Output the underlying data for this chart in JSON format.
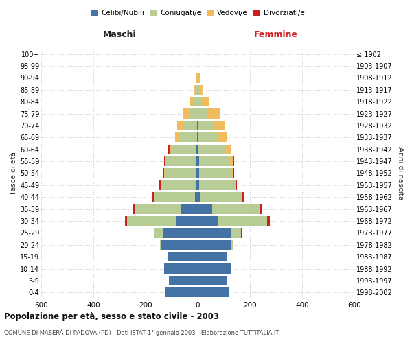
{
  "age_groups": [
    "0-4",
    "5-9",
    "10-14",
    "15-19",
    "20-24",
    "25-29",
    "30-34",
    "35-39",
    "40-44",
    "45-49",
    "50-54",
    "55-59",
    "60-64",
    "65-69",
    "70-74",
    "75-79",
    "80-84",
    "85-89",
    "90-94",
    "95-99",
    "100+"
  ],
  "birth_years": [
    "1998-2002",
    "1993-1997",
    "1988-1992",
    "1983-1987",
    "1978-1982",
    "1973-1977",
    "1968-1972",
    "1963-1967",
    "1958-1962",
    "1953-1957",
    "1948-1952",
    "1943-1947",
    "1938-1942",
    "1933-1937",
    "1928-1932",
    "1923-1927",
    "1918-1922",
    "1913-1917",
    "1908-1912",
    "1903-1907",
    "≤ 1902"
  ],
  "maschi_celibe": [
    125,
    110,
    130,
    115,
    140,
    135,
    85,
    65,
    10,
    8,
    6,
    5,
    4,
    3,
    3,
    0,
    0,
    0,
    0,
    0,
    0
  ],
  "maschi_coniugato": [
    0,
    0,
    0,
    0,
    5,
    30,
    185,
    175,
    155,
    130,
    120,
    115,
    95,
    68,
    55,
    30,
    12,
    4,
    2,
    0,
    0
  ],
  "maschi_vedovo": [
    0,
    0,
    0,
    0,
    0,
    0,
    0,
    0,
    1,
    2,
    3,
    5,
    10,
    15,
    20,
    25,
    18,
    8,
    3,
    1,
    0
  ],
  "maschi_divorziato": [
    0,
    0,
    0,
    0,
    0,
    2,
    8,
    10,
    10,
    8,
    6,
    5,
    3,
    2,
    1,
    0,
    0,
    0,
    0,
    0,
    0
  ],
  "femmine_celibe": [
    120,
    110,
    130,
    110,
    130,
    130,
    80,
    55,
    8,
    6,
    5,
    4,
    3,
    2,
    2,
    0,
    0,
    0,
    0,
    0,
    0
  ],
  "femmine_coniugata": [
    0,
    0,
    0,
    0,
    5,
    35,
    185,
    180,
    160,
    135,
    125,
    120,
    100,
    75,
    58,
    35,
    15,
    5,
    2,
    0,
    0
  ],
  "femmine_vedova": [
    0,
    0,
    0,
    0,
    0,
    0,
    0,
    1,
    2,
    3,
    5,
    12,
    22,
    35,
    45,
    50,
    30,
    15,
    5,
    2,
    0
  ],
  "femmine_divorziata": [
    0,
    0,
    0,
    0,
    0,
    3,
    10,
    12,
    10,
    7,
    5,
    4,
    3,
    2,
    1,
    0,
    0,
    0,
    0,
    0,
    0
  ],
  "color_celibe": "#4472a4",
  "color_coniugato": "#b8cc96",
  "color_vedovo": "#f0bc5e",
  "color_divorziato": "#cc2020",
  "title": "Popolazione per età, sesso e stato civile - 2003",
  "subtitle": "COMUNE DI MASERÀ DI PADOVA (PD) - Dati ISTAT 1° gennaio 2003 - Elaborazione TUTTITALIA.IT",
  "xlabel_left": "Maschi",
  "xlabel_right": "Femmine",
  "ylabel_left": "Fasce di età",
  "ylabel_right": "Anni di nascita",
  "xlim": 600,
  "bg_color": "#ffffff",
  "grid_color": "#cccccc"
}
